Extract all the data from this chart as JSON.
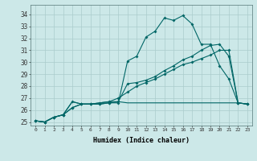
{
  "xlabel": "Humidex (Indice chaleur)",
  "ylabel": "",
  "background_color": "#cce8e8",
  "grid_color": "#aacccc",
  "line_color": "#006666",
  "xlim": [
    -0.5,
    23.5
  ],
  "ylim": [
    24.7,
    34.8
  ],
  "xtick_labels": [
    "0",
    "1",
    "2",
    "3",
    "4",
    "5",
    "6",
    "7",
    "8",
    "9",
    "10",
    "11",
    "12",
    "13",
    "14",
    "15",
    "16",
    "17",
    "18",
    "19",
    "20",
    "21",
    "22",
    "23"
  ],
  "ytick_values": [
    25,
    26,
    27,
    28,
    29,
    30,
    31,
    32,
    33,
    34
  ],
  "line1": [
    25.1,
    25.0,
    25.4,
    25.6,
    26.2,
    26.5,
    26.5,
    26.5,
    26.6,
    26.6,
    30.1,
    30.5,
    32.1,
    32.6,
    33.7,
    33.5,
    33.9,
    33.2,
    31.5,
    31.5,
    29.7,
    28.6,
    26.6,
    26.5
  ],
  "line2": [
    25.1,
    25.0,
    25.4,
    25.6,
    26.2,
    26.5,
    26.5,
    26.5,
    26.6,
    26.7,
    28.2,
    28.3,
    28.5,
    28.8,
    29.3,
    29.7,
    30.2,
    30.5,
    31.0,
    31.4,
    31.5,
    30.5,
    26.6,
    26.5
  ],
  "line3": [
    25.1,
    25.0,
    25.4,
    25.6,
    26.7,
    26.5,
    26.5,
    26.6,
    26.7,
    27.0,
    27.5,
    28.0,
    28.3,
    28.6,
    29.0,
    29.4,
    29.8,
    30.0,
    30.3,
    30.6,
    31.0,
    31.0,
    26.6,
    26.5
  ],
  "line4": [
    25.1,
    25.0,
    25.4,
    25.6,
    26.7,
    26.5,
    26.5,
    26.6,
    26.7,
    26.7,
    26.6,
    26.6,
    26.6,
    26.6,
    26.6,
    26.6,
    26.6,
    26.6,
    26.6,
    26.6,
    26.6,
    26.6,
    26.6,
    26.5
  ]
}
